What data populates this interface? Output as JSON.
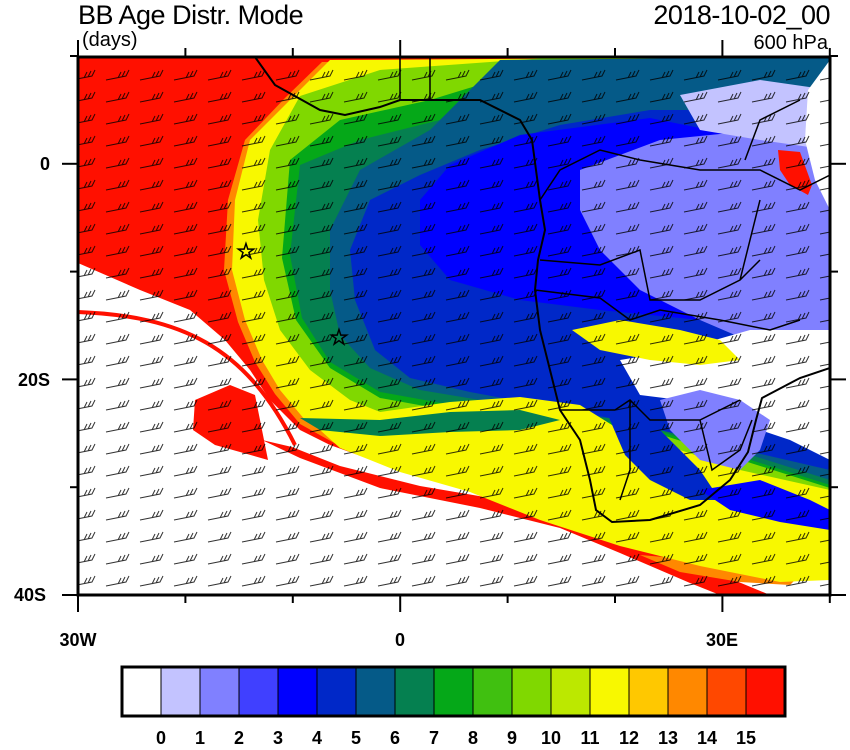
{
  "header": {
    "title": "BB Age Distr. Mode",
    "units": "(days)",
    "datetime": "2018-10-02_00",
    "level": "600 hPa"
  },
  "map": {
    "region": "South Atlantic / Southern Africa",
    "lat_labels": [
      "0",
      "20S",
      "40S"
    ],
    "lon_labels": [
      "30W",
      "0",
      "30E"
    ],
    "overlay": "wind barbs",
    "markers": [
      "star",
      "star"
    ]
  },
  "colorbar": {
    "labels": [
      "0",
      "1",
      "2",
      "3",
      "4",
      "5",
      "6",
      "7",
      "8",
      "9",
      "10",
      "11",
      "12",
      "13",
      "14",
      "15"
    ],
    "colors": [
      "#ffffff",
      "#c3c3ff",
      "#8080ff",
      "#4040ff",
      "#0000ff",
      "#0028c8",
      "#055a88",
      "#058050",
      "#05a818",
      "#40c010",
      "#80d800",
      "#bce800",
      "#f8f800",
      "#ffc800",
      "#ff8800",
      "#ff4800",
      "#ff1000"
    ]
  }
}
